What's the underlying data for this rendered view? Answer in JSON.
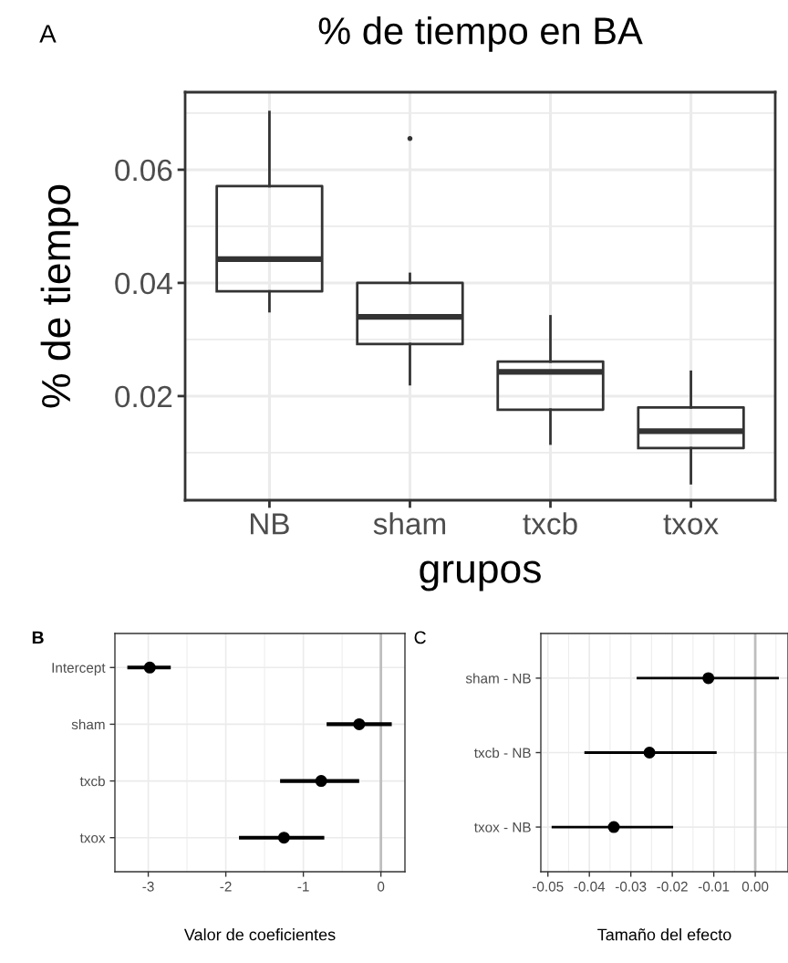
{
  "chart_data": [
    {
      "type": "box",
      "title": "% de tiempo en BA",
      "xlabel": "grupos",
      "ylabel": "% de tiempo",
      "annotations": [
        "A"
      ],
      "categories": [
        "NB",
        "sham",
        "txcb",
        "txox"
      ],
      "boxes": [
        {
          "low": 0.035,
          "q1": 0.0385,
          "median": 0.0442,
          "q3": 0.0571,
          "high": 0.0702
        },
        {
          "low": 0.0221,
          "q1": 0.0292,
          "median": 0.034,
          "q3": 0.04,
          "high": 0.0416,
          "outliers": [
            0.0655
          ]
        },
        {
          "low": 0.0116,
          "q1": 0.0176,
          "median": 0.0243,
          "q3": 0.0261,
          "high": 0.0341
        },
        {
          "low": 0.0046,
          "q1": 0.0108,
          "median": 0.0138,
          "q3": 0.018,
          "high": 0.0243
        }
      ],
      "ylim": [
        0.0016,
        0.0737
      ],
      "yticks": [
        0.02,
        0.04,
        0.06
      ],
      "grid": true
    },
    {
      "type": "scatter",
      "orientation": "horizontal",
      "xlabel": "Valor de coeficientes",
      "annotations": [
        "B"
      ],
      "marker": "circle",
      "categories": [
        "Intercept",
        "sham",
        "txcb",
        "txox"
      ],
      "values": [
        -2.98,
        -0.28,
        -0.77,
        -1.25
      ],
      "errors": [
        [
          -3.27,
          -2.71
        ],
        [
          -0.7,
          0.14
        ],
        [
          -1.3,
          -0.28
        ],
        [
          -1.83,
          -0.73
        ]
      ],
      "color": "#000000",
      "xlim": [
        -3.43,
        0.31
      ],
      "xticks": [
        -3,
        -2,
        -1,
        0
      ],
      "grid": true,
      "ref_lines": [
        {
          "axis": "x",
          "value": 0,
          "color": "#bebebe"
        }
      ]
    },
    {
      "type": "scatter",
      "orientation": "horizontal",
      "xlabel": "Tamaño del efecto",
      "annotations": [
        "C"
      ],
      "marker": "circle",
      "categories": [
        "sham - NB",
        "txcb - NB",
        "txox - NB"
      ],
      "values": [
        -0.0113,
        -0.0255,
        -0.0341
      ],
      "errors": [
        [
          -0.0286,
          0.0057
        ],
        [
          -0.0412,
          -0.0093
        ],
        [
          -0.0491,
          -0.0198
        ]
      ],
      "color": "#000000",
      "xlim": [
        -0.0517,
        0.0079
      ],
      "xticks": [
        {
          "value": -0.05,
          "label": "-0.05"
        },
        {
          "value": -0.04,
          "label": "-0.04"
        },
        {
          "value": -0.03,
          "label": "-0.03"
        },
        {
          "value": -0.02,
          "label": "-0.02"
        },
        {
          "value": -0.01,
          "label": "-0.01"
        },
        {
          "value": 0,
          "label": "0.00"
        }
      ],
      "grid": true,
      "ref_lines": [
        {
          "axis": "x",
          "value": 0,
          "color": "#bebebe"
        }
      ]
    }
  ]
}
